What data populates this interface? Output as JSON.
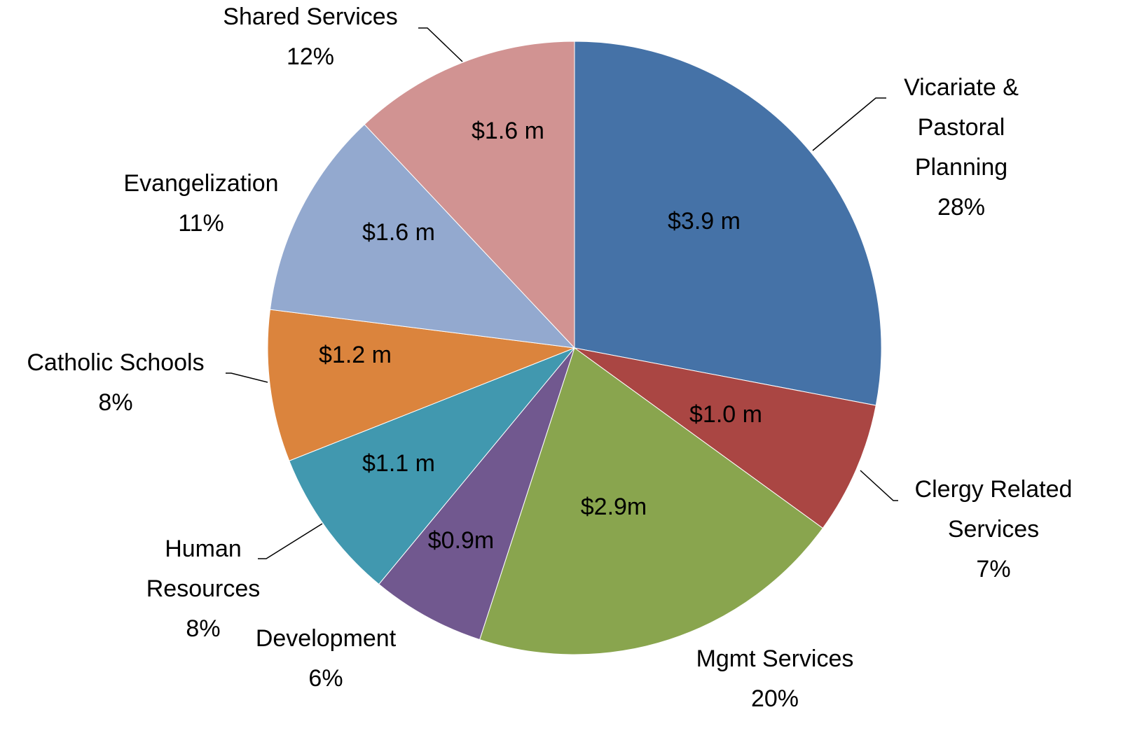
{
  "chart_data": {
    "type": "pie",
    "categories": [
      "Vicariate & Pastoral Planning",
      "Clergy Related Services",
      "Mgmt Services",
      "Development",
      "Human Resources",
      "Catholic Schools",
      "Evangelization",
      "Shared Services"
    ],
    "values": [
      28,
      7,
      20,
      6,
      8,
      8,
      11,
      12
    ],
    "value_labels": [
      "28%",
      "7%",
      "20%",
      "6%",
      "8%",
      "8%",
      "11%",
      "12%"
    ],
    "amount_labels": [
      "$3.9 m",
      "$1.0 m",
      "$2.9m",
      "$0.9m",
      "$1.1 m",
      "$1.2 m",
      "$1.6 m",
      "$1.6 m"
    ],
    "colors": [
      "#4572a7",
      "#aa4643",
      "#89a54e",
      "#71588f",
      "#4198af",
      "#db843d",
      "#93a9cf",
      "#d19392"
    ]
  }
}
